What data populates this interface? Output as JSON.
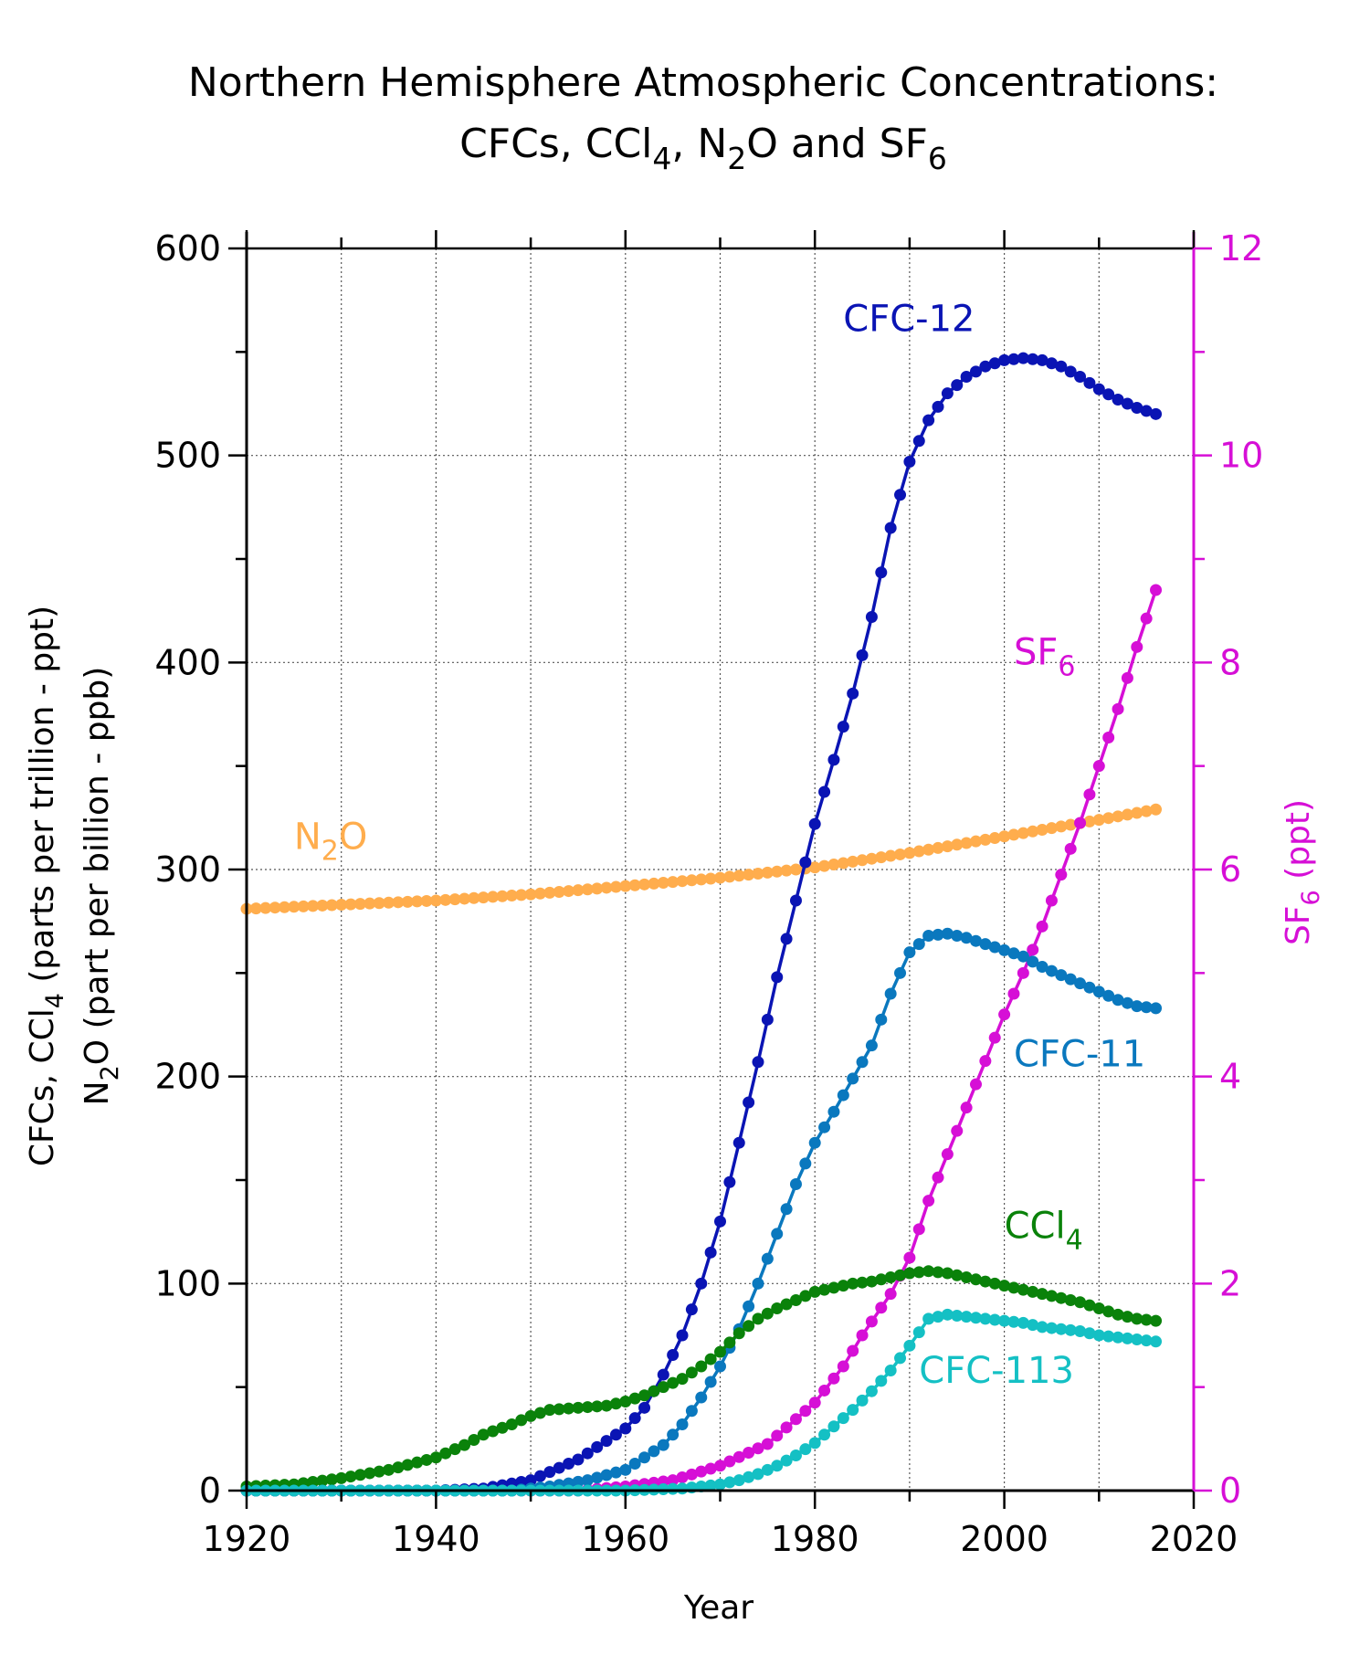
{
  "chart_data": {
    "type": "line",
    "title": {
      "line1": "Northern Hemisphere Atmospheric Concentrations:",
      "line2": [
        {
          "t": "CFCs, CCl"
        },
        {
          "t": "4",
          "sub": true
        },
        {
          "t": ", N"
        },
        {
          "t": "2",
          "sub": true
        },
        {
          "t": "O and SF"
        },
        {
          "t": "6",
          "sub": true
        }
      ]
    },
    "xlabel": "Year",
    "ylabel_left": {
      "line1": [
        {
          "t": "CFCs, CCl"
        },
        {
          "t": "4",
          "sub": true
        },
        {
          "t": " (parts per trillion - ppt)"
        }
      ],
      "line2": [
        {
          "t": "N"
        },
        {
          "t": "2",
          "sub": true
        },
        {
          "t": "O (part per billion - ppb)"
        }
      ]
    },
    "ylabel_right": [
      {
        "t": "SF"
      },
      {
        "t": "6",
        "sub": true
      },
      {
        "t": " (ppt)"
      }
    ],
    "xlim": [
      1920,
      2020
    ],
    "xticks": [
      1920,
      1940,
      1960,
      1980,
      2000,
      2020
    ],
    "ylim_left": [
      0,
      600
    ],
    "yticks_left": [
      0,
      100,
      200,
      300,
      400,
      500,
      600
    ],
    "ylim_right": [
      0,
      12
    ],
    "yticks_right": [
      0,
      2,
      4,
      6,
      8,
      10,
      12
    ],
    "right_axis_color": "#d60fd6",
    "grid": true,
    "series": [
      {
        "name": "N2O",
        "label_parts": [
          {
            "t": "N"
          },
          {
            "t": "2",
            "sub": true
          },
          {
            "t": "O"
          }
        ],
        "label_at": {
          "x": 1925,
          "y": 310
        },
        "color": "#ffad4d",
        "axis": "left",
        "points": [
          [
            1920,
            281
          ],
          [
            1930,
            283
          ],
          [
            1940,
            285
          ],
          [
            1950,
            288
          ],
          [
            1960,
            292
          ],
          [
            1970,
            296
          ],
          [
            1980,
            301
          ],
          [
            1990,
            308
          ],
          [
            2000,
            316
          ],
          [
            2010,
            324
          ],
          [
            2016,
            329
          ]
        ]
      },
      {
        "name": "CFC-12",
        "label_parts": [
          {
            "t": "CFC-12"
          }
        ],
        "label_at": {
          "x": 1983,
          "y": 560
        },
        "color": "#0a14b4",
        "axis": "left",
        "points": [
          [
            1920,
            0
          ],
          [
            1940,
            0
          ],
          [
            1945,
            1
          ],
          [
            1950,
            5
          ],
          [
            1955,
            15
          ],
          [
            1960,
            30
          ],
          [
            1962,
            40
          ],
          [
            1964,
            56
          ],
          [
            1966,
            75
          ],
          [
            1968,
            100
          ],
          [
            1970,
            130
          ],
          [
            1972,
            168
          ],
          [
            1974,
            207
          ],
          [
            1976,
            248
          ],
          [
            1978,
            285
          ],
          [
            1980,
            322
          ],
          [
            1982,
            353
          ],
          [
            1984,
            385
          ],
          [
            1986,
            422
          ],
          [
            1988,
            465
          ],
          [
            1990,
            497
          ],
          [
            1992,
            517
          ],
          [
            1994,
            530
          ],
          [
            1996,
            538
          ],
          [
            1998,
            543
          ],
          [
            2000,
            546
          ],
          [
            2002,
            547
          ],
          [
            2004,
            546
          ],
          [
            2006,
            543
          ],
          [
            2008,
            538
          ],
          [
            2010,
            532
          ],
          [
            2012,
            527
          ],
          [
            2014,
            523
          ],
          [
            2016,
            520
          ]
        ]
      },
      {
        "name": "SF6",
        "label_parts": [
          {
            "t": "SF"
          },
          {
            "t": "6",
            "sub": true
          }
        ],
        "label_at": {
          "x": 2001,
          "y": 399
        },
        "color": "#d60fd6",
        "axis": "right",
        "points": [
          [
            1920,
            0
          ],
          [
            1955,
            0
          ],
          [
            1960,
            0.04
          ],
          [
            1965,
            0.1
          ],
          [
            1970,
            0.24
          ],
          [
            1975,
            0.45
          ],
          [
            1980,
            0.85
          ],
          [
            1983,
            1.2
          ],
          [
            1985,
            1.5
          ],
          [
            1988,
            1.9
          ],
          [
            1990,
            2.25
          ],
          [
            1992,
            2.8
          ],
          [
            1994,
            3.25
          ],
          [
            1996,
            3.7
          ],
          [
            1998,
            4.15
          ],
          [
            2000,
            4.6
          ],
          [
            2002,
            5.0
          ],
          [
            2004,
            5.45
          ],
          [
            2006,
            5.95
          ],
          [
            2008,
            6.45
          ],
          [
            2010,
            7.0
          ],
          [
            2012,
            7.55
          ],
          [
            2014,
            8.15
          ],
          [
            2016,
            8.7
          ]
        ]
      },
      {
        "name": "CFC-11",
        "label_parts": [
          {
            "t": "CFC-11"
          }
        ],
        "label_at": {
          "x": 2001,
          "y": 205
        },
        "color": "#0a78be",
        "axis": "left",
        "points": [
          [
            1920,
            0
          ],
          [
            1948,
            0
          ],
          [
            1952,
            2
          ],
          [
            1956,
            5
          ],
          [
            1960,
            10
          ],
          [
            1964,
            22
          ],
          [
            1966,
            32
          ],
          [
            1968,
            45
          ],
          [
            1970,
            60
          ],
          [
            1972,
            78
          ],
          [
            1974,
            100
          ],
          [
            1976,
            124
          ],
          [
            1978,
            148
          ],
          [
            1980,
            168
          ],
          [
            1982,
            183
          ],
          [
            1984,
            199
          ],
          [
            1986,
            215
          ],
          [
            1988,
            240
          ],
          [
            1990,
            260
          ],
          [
            1992,
            268
          ],
          [
            1994,
            269
          ],
          [
            1996,
            267
          ],
          [
            1998,
            264
          ],
          [
            2000,
            261
          ],
          [
            2002,
            258
          ],
          [
            2004,
            253
          ],
          [
            2006,
            249
          ],
          [
            2008,
            245
          ],
          [
            2010,
            241
          ],
          [
            2012,
            237
          ],
          [
            2014,
            234
          ],
          [
            2016,
            233
          ]
        ]
      },
      {
        "name": "CCl4",
        "label_parts": [
          {
            "t": "CCl"
          },
          {
            "t": "4",
            "sub": true
          }
        ],
        "label_at": {
          "x": 2000,
          "y": 122
        },
        "color": "#0a820a",
        "axis": "left",
        "points": [
          [
            1920,
            2
          ],
          [
            1925,
            3
          ],
          [
            1930,
            6
          ],
          [
            1935,
            10
          ],
          [
            1940,
            16
          ],
          [
            1943,
            22
          ],
          [
            1945,
            27
          ],
          [
            1948,
            32
          ],
          [
            1950,
            36
          ],
          [
            1952,
            39
          ],
          [
            1955,
            40
          ],
          [
            1958,
            41
          ],
          [
            1960,
            43
          ],
          [
            1962,
            46
          ],
          [
            1964,
            50
          ],
          [
            1966,
            54
          ],
          [
            1968,
            60
          ],
          [
            1970,
            67
          ],
          [
            1972,
            76
          ],
          [
            1974,
            83
          ],
          [
            1976,
            88
          ],
          [
            1978,
            92
          ],
          [
            1980,
            96
          ],
          [
            1982,
            98
          ],
          [
            1984,
            100
          ],
          [
            1986,
            101
          ],
          [
            1988,
            103
          ],
          [
            1990,
            105
          ],
          [
            1992,
            106
          ],
          [
            1994,
            105
          ],
          [
            1996,
            103
          ],
          [
            1998,
            101
          ],
          [
            2000,
            99
          ],
          [
            2002,
            97
          ],
          [
            2004,
            95
          ],
          [
            2006,
            93
          ],
          [
            2008,
            91
          ],
          [
            2010,
            88
          ],
          [
            2012,
            85
          ],
          [
            2014,
            83
          ],
          [
            2016,
            82
          ]
        ]
      },
      {
        "name": "CFC-113",
        "label_parts": [
          {
            "t": "CFC-113"
          }
        ],
        "label_at": {
          "x": 1991,
          "y": 52
        },
        "color": "#14c0c4",
        "axis": "left",
        "points": [
          [
            1920,
            0
          ],
          [
            1960,
            0
          ],
          [
            1966,
            1
          ],
          [
            1970,
            3
          ],
          [
            1972,
            5
          ],
          [
            1974,
            8
          ],
          [
            1976,
            12
          ],
          [
            1978,
            17
          ],
          [
            1980,
            23
          ],
          [
            1982,
            31
          ],
          [
            1984,
            39
          ],
          [
            1986,
            48
          ],
          [
            1988,
            58
          ],
          [
            1990,
            70
          ],
          [
            1992,
            83
          ],
          [
            1994,
            85
          ],
          [
            1996,
            84
          ],
          [
            1998,
            83
          ],
          [
            2000,
            82
          ],
          [
            2002,
            81
          ],
          [
            2004,
            79
          ],
          [
            2006,
            78
          ],
          [
            2008,
            77
          ],
          [
            2010,
            75
          ],
          [
            2012,
            74
          ],
          [
            2014,
            73
          ],
          [
            2016,
            72
          ]
        ]
      }
    ]
  }
}
